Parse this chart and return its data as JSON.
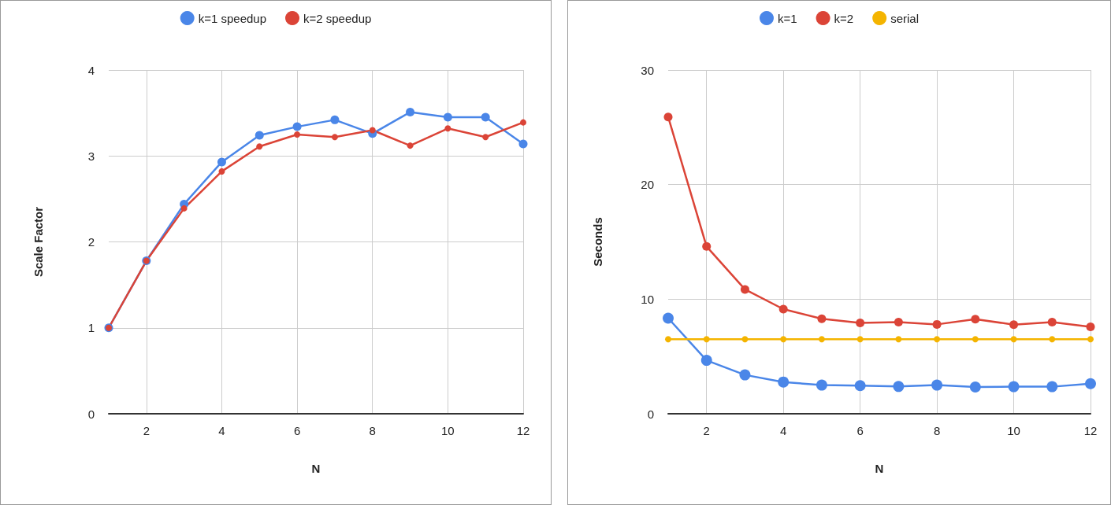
{
  "chart_data": [
    {
      "type": "line",
      "xlabel": "N",
      "ylabel": "Scale Factor",
      "x": [
        1,
        2,
        3,
        4,
        5,
        6,
        7,
        8,
        9,
        10,
        11,
        12
      ],
      "xlim": [
        1,
        12
      ],
      "xticks": [
        2,
        4,
        6,
        8,
        10,
        12
      ],
      "ylim": [
        0,
        4
      ],
      "yticks": [
        0,
        1,
        2,
        3,
        4
      ],
      "grid": true,
      "legend": "top",
      "marker": "circle",
      "line_style": "solid",
      "series": [
        {
          "name": "k=1 speedup",
          "color": "#4a86e8",
          "values": [
            1,
            1.78,
            2.44,
            2.93,
            3.24,
            3.34,
            3.42,
            3.26,
            3.51,
            3.45,
            3.45,
            3.14
          ]
        },
        {
          "name": "k=2 speedup",
          "color": "#db4437",
          "values": [
            1,
            1.78,
            2.39,
            2.82,
            3.11,
            3.25,
            3.22,
            3.3,
            3.12,
            3.32,
            3.22,
            3.39
          ]
        }
      ]
    },
    {
      "type": "line",
      "xlabel": "N",
      "ylabel": "Seconds",
      "x": [
        1,
        2,
        3,
        4,
        5,
        6,
        7,
        8,
        9,
        10,
        11,
        12
      ],
      "xlim": [
        1,
        12
      ],
      "xticks": [
        2,
        4,
        6,
        8,
        10,
        12
      ],
      "ylim": [
        0,
        30
      ],
      "yticks": [
        0,
        10,
        20,
        30
      ],
      "grid": true,
      "legend": "top",
      "marker": "circle",
      "line_style": "solid",
      "series": [
        {
          "name": "k=1",
          "color": "#4a86e8",
          "values": [
            8.34,
            4.66,
            3.39,
            2.77,
            2.5,
            2.45,
            2.38,
            2.5,
            2.33,
            2.36,
            2.36,
            2.63
          ]
        },
        {
          "name": "k=2",
          "color": "#db4437",
          "values": [
            25.9,
            14.6,
            10.85,
            9.13,
            8.29,
            7.93,
            8.0,
            7.8,
            8.25,
            7.78,
            8.0,
            7.58
          ]
        },
        {
          "name": "serial",
          "color": "#f4b400",
          "values": [
            6.5,
            6.5,
            6.5,
            6.5,
            6.5,
            6.5,
            6.5,
            6.5,
            6.5,
            6.5,
            6.5,
            6.5
          ]
        }
      ]
    }
  ]
}
